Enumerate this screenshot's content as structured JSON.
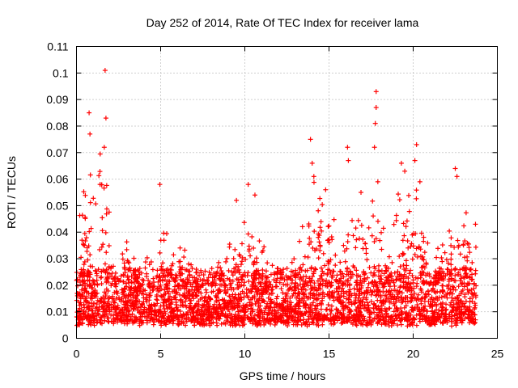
{
  "chart_data": {
    "type": "scatter",
    "title": "Day 252 of 2014, Rate Of TEC Index for receiver lama",
    "xlabel": "GPS time / hours",
    "ylabel": "ROTI / TECUs",
    "xlim": [
      0,
      25
    ],
    "ylim": [
      0,
      0.11
    ],
    "grid": true,
    "series_color": "#ff0000",
    "x_ticks": [
      {
        "value": 0,
        "label": "0"
      },
      {
        "value": 5,
        "label": "5"
      },
      {
        "value": 10,
        "label": "10"
      },
      {
        "value": 15,
        "label": "15"
      },
      {
        "value": 20,
        "label": "20"
      },
      {
        "value": 25,
        "label": "25"
      }
    ],
    "y_ticks": [
      {
        "value": 0,
        "label": "0"
      },
      {
        "value": 0.01,
        "label": "0.01"
      },
      {
        "value": 0.02,
        "label": "0.02"
      },
      {
        "value": 0.03,
        "label": "0.03"
      },
      {
        "value": 0.04,
        "label": "0.04"
      },
      {
        "value": 0.05,
        "label": "0.05"
      },
      {
        "value": 0.06,
        "label": "0.06"
      },
      {
        "value": 0.07,
        "label": "0.07"
      },
      {
        "value": 0.08,
        "label": "0.08"
      },
      {
        "value": 0.09,
        "label": "0.09"
      },
      {
        "value": 0.1,
        "label": "0.1"
      },
      {
        "value": 0.11,
        "label": "0.11"
      }
    ],
    "data_extent_hours": [
      0,
      23.75
    ],
    "background_band": {
      "low": 0.006,
      "high": 0.026
    },
    "peaks": [
      {
        "x": 0.75,
        "y": 0.085
      },
      {
        "x": 0.8,
        "y": 0.077
      },
      {
        "x": 1.4,
        "y": 0.058
      },
      {
        "x": 1.7,
        "y": 0.101
      },
      {
        "x": 1.75,
        "y": 0.083
      },
      {
        "x": 1.65,
        "y": 0.072
      },
      {
        "x": 4.95,
        "y": 0.058
      },
      {
        "x": 9.5,
        "y": 0.052
      },
      {
        "x": 10.2,
        "y": 0.058
      },
      {
        "x": 10.6,
        "y": 0.054
      },
      {
        "x": 13.9,
        "y": 0.075
      },
      {
        "x": 14.0,
        "y": 0.066
      },
      {
        "x": 14.1,
        "y": 0.061
      },
      {
        "x": 14.8,
        "y": 0.056
      },
      {
        "x": 16.1,
        "y": 0.072
      },
      {
        "x": 16.15,
        "y": 0.067
      },
      {
        "x": 16.9,
        "y": 0.055
      },
      {
        "x": 17.8,
        "y": 0.093
      },
      {
        "x": 17.8,
        "y": 0.087
      },
      {
        "x": 17.75,
        "y": 0.081
      },
      {
        "x": 17.7,
        "y": 0.072
      },
      {
        "x": 17.9,
        "y": 0.059
      },
      {
        "x": 19.3,
        "y": 0.066
      },
      {
        "x": 19.5,
        "y": 0.063
      },
      {
        "x": 20.2,
        "y": 0.073
      },
      {
        "x": 20.1,
        "y": 0.067
      },
      {
        "x": 20.4,
        "y": 0.059
      },
      {
        "x": 22.5,
        "y": 0.064
      },
      {
        "x": 22.6,
        "y": 0.061
      },
      {
        "x": 23.7,
        "y": 0.043
      }
    ],
    "activity": [
      {
        "center": 0.3,
        "width": 0.3,
        "level": 0.02
      },
      {
        "center": 1.0,
        "width": 0.6,
        "level": 0.025
      },
      {
        "center": 1.6,
        "width": 0.4,
        "level": 0.03
      },
      {
        "center": 3.5,
        "width": 0.8,
        "level": 0.012
      },
      {
        "center": 5.3,
        "width": 1.0,
        "level": 0.012
      },
      {
        "center": 6.3,
        "width": 0.5,
        "level": 0.01
      },
      {
        "center": 9.8,
        "width": 0.9,
        "level": 0.014
      },
      {
        "center": 11.0,
        "width": 0.6,
        "level": 0.01
      },
      {
        "center": 14.0,
        "width": 0.8,
        "level": 0.022
      },
      {
        "center": 15.0,
        "width": 0.7,
        "level": 0.016
      },
      {
        "center": 16.5,
        "width": 0.8,
        "level": 0.016
      },
      {
        "center": 17.7,
        "width": 0.6,
        "level": 0.02
      },
      {
        "center": 19.2,
        "width": 0.9,
        "level": 0.02
      },
      {
        "center": 20.3,
        "width": 0.7,
        "level": 0.018
      },
      {
        "center": 22.4,
        "width": 0.8,
        "level": 0.018
      },
      {
        "center": 23.3,
        "width": 0.5,
        "level": 0.01
      }
    ]
  }
}
